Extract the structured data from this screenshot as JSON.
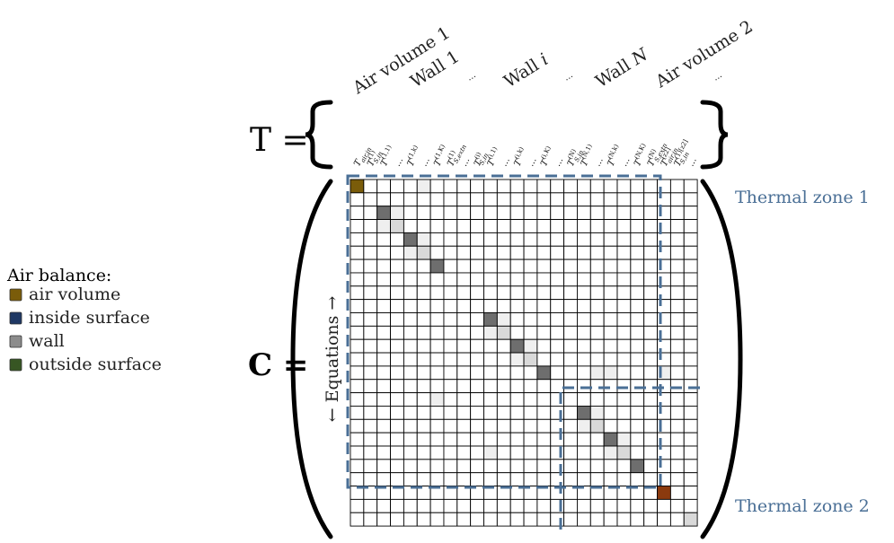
{
  "header_labels": [
    "Air volume 1",
    "Wall 1",
    "...",
    "Wall i",
    "...",
    "Wall N",
    "Air volume 2",
    "..."
  ],
  "t_equation_label": "T =",
  "c_equation_label": "C =",
  "equations_axis_label": "← Equations →",
  "legend": {
    "title": "Air balance:",
    "items": [
      {
        "label": "air volume",
        "color": "#7a5c0a",
        "name": "air-volume"
      },
      {
        "label": "inside surface",
        "color": "#1f3864",
        "name": "inside-surface"
      },
      {
        "label": "wall",
        "color": "#8c8c8c",
        "name": "wall"
      },
      {
        "label": "outside surface",
        "color": "#375623",
        "name": "outside-surface"
      }
    ]
  },
  "zones": {
    "zone1_label": "Thermal zone 1",
    "zone2_label": "Thermal zone 2",
    "label_color": "#4a6f96",
    "box_color": "#4a6f96"
  },
  "variables": [
    {
      "base": "T",
      "sup": "",
      "sub": "air,in"
    },
    {
      "base": "T",
      "sup": "(1)",
      "sub": "S,in"
    },
    {
      "base": "T",
      "sup": "(1,1)",
      "sub": ""
    },
    {
      "base": "...",
      "sup": "",
      "sub": ""
    },
    {
      "base": "T",
      "sup": "(1,k)",
      "sub": ""
    },
    {
      "base": "...",
      "sup": "",
      "sub": ""
    },
    {
      "base": "T",
      "sup": "(1,K)",
      "sub": ""
    },
    {
      "base": "T",
      "sup": "(1)",
      "sub": "S,extn"
    },
    {
      "base": "...",
      "sup": "",
      "sub": ""
    },
    {
      "base": "T",
      "sup": "(i)",
      "sub": "S,in"
    },
    {
      "base": "T",
      "sup": "(i,1)",
      "sub": ""
    },
    {
      "base": "...",
      "sup": "",
      "sub": ""
    },
    {
      "base": "T",
      "sup": "(i,k)",
      "sub": ""
    },
    {
      "base": "...",
      "sup": "",
      "sub": ""
    },
    {
      "base": "T",
      "sup": "(i,K)",
      "sub": ""
    },
    {
      "base": "...",
      "sup": "",
      "sub": ""
    },
    {
      "base": "T",
      "sup": "(N)",
      "sub": "S,in"
    },
    {
      "base": "T",
      "sup": "(N,1)",
      "sub": ""
    },
    {
      "base": "...",
      "sup": "",
      "sub": ""
    },
    {
      "base": "T",
      "sup": "(N,k)",
      "sub": ""
    },
    {
      "base": "...",
      "sup": "",
      "sub": ""
    },
    {
      "base": "T",
      "sup": "(N,K)",
      "sub": ""
    },
    {
      "base": "T",
      "sup": "(N)",
      "sub": "S,extn"
    },
    {
      "base": "T",
      "sup": "[z2]",
      "sub": "air,in"
    },
    {
      "base": "T",
      "sup": "(1)[z2]",
      "sub": "S,in"
    },
    {
      "base": "...",
      "sup": "",
      "sub": ""
    }
  ],
  "matrix": {
    "rows": 26,
    "cols": 26,
    "grid_color": "#000000",
    "cell_fill": "#ffffff",
    "shades": {
      "air_volume": "#7a5c0a",
      "air_volume_2": "#8b3a0e",
      "dark": "#6e6e6e",
      "light": "#d9d9d9",
      "faint": "#efefef"
    },
    "filled_cells": [
      {
        "r": 0,
        "c": 0,
        "shade": "air_volume"
      },
      {
        "r": 2,
        "c": 2,
        "shade": "dark"
      },
      {
        "r": 3,
        "c": 3,
        "shade": "light"
      },
      {
        "r": 4,
        "c": 4,
        "shade": "dark"
      },
      {
        "r": 5,
        "c": 5,
        "shade": "light"
      },
      {
        "r": 6,
        "c": 6,
        "shade": "dark"
      },
      {
        "r": 10,
        "c": 10,
        "shade": "dark"
      },
      {
        "r": 11,
        "c": 11,
        "shade": "light"
      },
      {
        "r": 12,
        "c": 12,
        "shade": "dark"
      },
      {
        "r": 13,
        "c": 13,
        "shade": "light"
      },
      {
        "r": 14,
        "c": 14,
        "shade": "dark"
      },
      {
        "r": 17,
        "c": 17,
        "shade": "dark"
      },
      {
        "r": 18,
        "c": 18,
        "shade": "light"
      },
      {
        "r": 19,
        "c": 19,
        "shade": "dark"
      },
      {
        "r": 20,
        "c": 20,
        "shade": "light"
      },
      {
        "r": 21,
        "c": 21,
        "shade": "dark"
      },
      {
        "r": 23,
        "c": 23,
        "shade": "air_volume_2"
      },
      {
        "r": 25,
        "c": 25,
        "shade": "light"
      },
      {
        "r": 0,
        "c": 5,
        "shade": "faint"
      },
      {
        "r": 2,
        "c": 3,
        "shade": "faint"
      },
      {
        "r": 3,
        "c": 2,
        "shade": "faint"
      },
      {
        "r": 4,
        "c": 5,
        "shade": "faint"
      },
      {
        "r": 5,
        "c": 4,
        "shade": "faint"
      },
      {
        "r": 10,
        "c": 11,
        "shade": "faint"
      },
      {
        "r": 11,
        "c": 10,
        "shade": "faint"
      },
      {
        "r": 12,
        "c": 13,
        "shade": "faint"
      },
      {
        "r": 13,
        "c": 12,
        "shade": "faint"
      },
      {
        "r": 14,
        "c": 18,
        "shade": "faint"
      },
      {
        "r": 14,
        "c": 19,
        "shade": "faint"
      },
      {
        "r": 14,
        "c": 23,
        "shade": "faint"
      },
      {
        "r": 16,
        "c": 6,
        "shade": "faint"
      },
      {
        "r": 17,
        "c": 18,
        "shade": "faint"
      },
      {
        "r": 18,
        "c": 17,
        "shade": "faint"
      },
      {
        "r": 19,
        "c": 20,
        "shade": "faint"
      },
      {
        "r": 20,
        "c": 19,
        "shade": "faint"
      },
      {
        "r": 20,
        "c": 10,
        "shade": "faint"
      }
    ]
  }
}
